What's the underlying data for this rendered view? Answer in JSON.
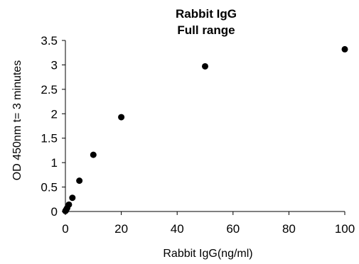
{
  "chart_data": {
    "type": "scatter",
    "title": "Rabbit IgG",
    "subtitle": "Full range",
    "xlabel": "Rabbit  IgG(ng/ml)",
    "ylabel": "OD 450nm t=  3 minutes",
    "xlim": [
      0,
      100
    ],
    "ylim": [
      0,
      3.5
    ],
    "xticks": [
      "0",
      "20",
      "40",
      "60",
      "80",
      "100"
    ],
    "yticks": [
      "0",
      "0.5",
      "1",
      "1.5",
      "2",
      "2.5",
      "3",
      "3.5"
    ],
    "grid": false,
    "legend": "none",
    "marker_color": "#000000",
    "x": [
      0,
      0.156,
      0.313,
      0.625,
      1.25,
      2.5,
      5,
      10,
      20,
      50,
      100
    ],
    "y": [
      0.01,
      0.02,
      0.04,
      0.07,
      0.14,
      0.28,
      0.63,
      1.16,
      1.93,
      2.97,
      3.32
    ]
  }
}
